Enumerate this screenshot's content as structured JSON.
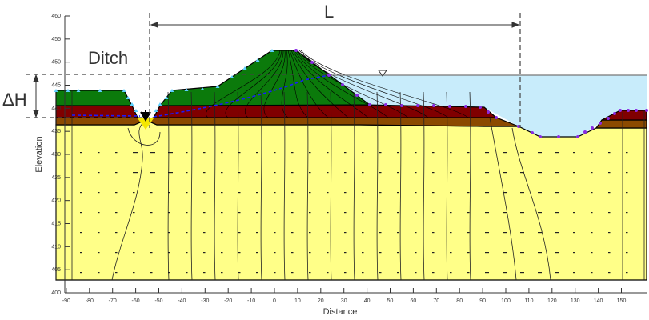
{
  "figure": {
    "x_axis": {
      "label": "Distance",
      "ticks": [
        -90,
        -80,
        -70,
        -60,
        -50,
        -40,
        -30,
        -20,
        -10,
        0,
        10,
        20,
        30,
        40,
        50,
        60,
        70,
        80,
        90,
        100,
        110,
        120,
        130,
        140,
        150
      ]
    },
    "y_axis": {
      "label": "Elevation",
      "ticks": [
        400,
        405,
        410,
        415,
        420,
        425,
        430,
        435,
        440,
        445,
        450,
        455,
        460
      ]
    },
    "annotations": {
      "ditch": "Ditch",
      "length": "L",
      "head_difference": "ΔH"
    },
    "colors": {
      "embankment": "#0b7a0b",
      "clay": "#800000",
      "silt": "#8b4a00",
      "sand": "#ffff88",
      "water": "#c8ecfb",
      "phreatic": "#1a1aff"
    }
  }
}
